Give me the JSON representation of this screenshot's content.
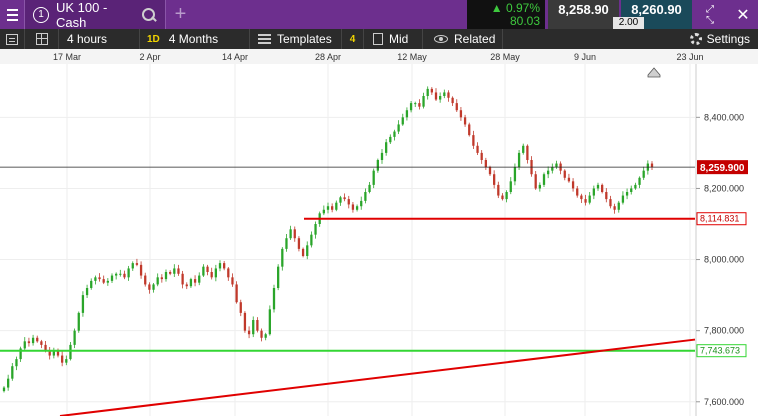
{
  "header": {
    "tab_number": "1",
    "instrument": "UK 100 - Cash",
    "add_tab": "+",
    "change_pct": "0.97%",
    "change_abs": "80.03",
    "sell_price": "8,258.90",
    "spread": "2.00",
    "buy_price": "8,260.90",
    "colors": {
      "bar": "#6d2f8e",
      "up": "#3ec93e"
    }
  },
  "toolbar": {
    "interval": "4 hours",
    "period_badge": "1D",
    "period": "4 Months",
    "templates": "Templates",
    "templates_badge": "4",
    "price_mode": "Mid",
    "related": "Related",
    "settings": "Settings"
  },
  "chart_data": {
    "type": "candlestick",
    "x_tick_labels": [
      "17 Mar",
      "2 Apr",
      "14 Apr",
      "28 Apr",
      "12 May",
      "28 May",
      "9 Jun",
      "23 Jun"
    ],
    "y_ticks": [
      7600,
      7800,
      8000,
      8200,
      8400
    ],
    "y_tick_labels": [
      "7,600.000",
      "7,800.000",
      "8,000.000",
      "8,200.000",
      "8,400.000"
    ],
    "ylim": [
      7560,
      8550
    ],
    "current_price": 8259.9,
    "current_price_label": "8,259.900",
    "support_line": {
      "value": 8114.831,
      "label": "8,114.831",
      "color": "#e00000"
    },
    "lower_support": {
      "value": 7743.673,
      "label": "7,743.673",
      "color": "#33d633"
    },
    "trendline": {
      "from": 7560,
      "to": 7775,
      "color": "#e00000"
    },
    "up_color": "#2aa52a",
    "down_color": "#c0392b",
    "candles": [
      7640,
      7665,
      7700,
      7720,
      7750,
      7770,
      7765,
      7780,
      7770,
      7760,
      7745,
      7730,
      7745,
      7730,
      7710,
      7720,
      7760,
      7800,
      7850,
      7900,
      7920,
      7940,
      7950,
      7945,
      7935,
      7940,
      7955,
      7960,
      7960,
      7950,
      7975,
      7990,
      7985,
      7955,
      7930,
      7915,
      7930,
      7950,
      7945,
      7965,
      7960,
      7975,
      7960,
      7930,
      7925,
      7945,
      7935,
      7955,
      7980,
      7965,
      7950,
      7975,
      7990,
      7975,
      7950,
      7930,
      7880,
      7850,
      7800,
      7790,
      7830,
      7800,
      7780,
      7790,
      7860,
      7920,
      7980,
      8030,
      8060,
      8085,
      8060,
      8030,
      8010,
      8040,
      8070,
      8100,
      8130,
      8140,
      8150,
      8140,
      8160,
      8175,
      8170,
      8155,
      8140,
      8150,
      8165,
      8190,
      8210,
      8250,
      8280,
      8300,
      8330,
      8345,
      8360,
      8380,
      8400,
      8420,
      8440,
      8440,
      8430,
      8460,
      8480,
      8470,
      8450,
      8460,
      8470,
      8455,
      8440,
      8420,
      8400,
      8380,
      8350,
      8320,
      8300,
      8280,
      8260,
      8240,
      8210,
      8180,
      8170,
      8190,
      8220,
      8260,
      8300,
      8320,
      8280,
      8240,
      8200,
      8210,
      8240,
      8250,
      8260,
      8270,
      8250,
      8230,
      8220,
      8200,
      8180,
      8170,
      8160,
      8180,
      8200,
      8210,
      8190,
      8170,
      8150,
      8140,
      8160,
      8180,
      8190,
      8200,
      8210,
      8230,
      8250,
      8270,
      8260
    ]
  }
}
